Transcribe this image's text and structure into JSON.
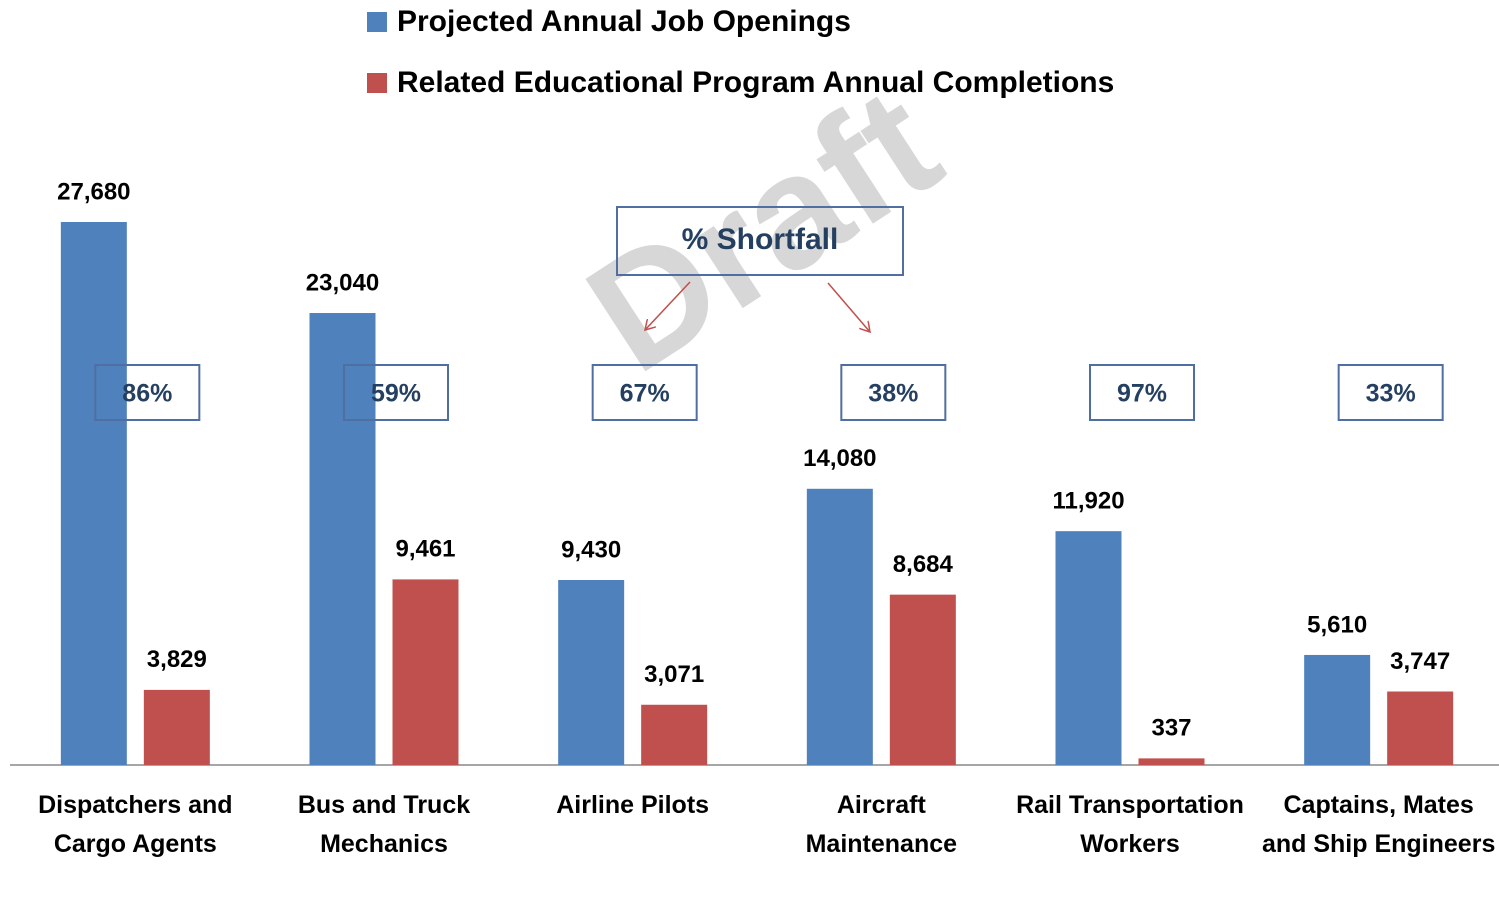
{
  "chart_data": {
    "type": "bar",
    "categories": [
      "Dispatchers and Cargo Agents",
      "Bus and Truck Mechanics",
      "Airline Pilots",
      "Aircraft Maintenance",
      "Rail Transportation Workers",
      "Captains, Mates and Ship Engineers"
    ],
    "series": [
      {
        "name": "Projected Annual Job Openings",
        "color": "#4f81bd",
        "values": [
          27680,
          23040,
          9430,
          14080,
          11920,
          5610
        ],
        "value_labels": [
          "27,680",
          "23,040",
          "9,430",
          "14,080",
          "11,920",
          "5,610"
        ]
      },
      {
        "name": "Related Educational Program Annual Completions",
        "color": "#c0504d",
        "values": [
          3829,
          9461,
          3071,
          8684,
          337,
          3747
        ],
        "value_labels": [
          "3,829",
          "9,461",
          "3,071",
          "8,684",
          "337",
          "3,747"
        ]
      }
    ],
    "annotations": {
      "callout": "% Shortfall",
      "shortfall": [
        "86%",
        "59%",
        "67%",
        "38%",
        "97%",
        "33%"
      ],
      "watermark": "Draft"
    }
  }
}
